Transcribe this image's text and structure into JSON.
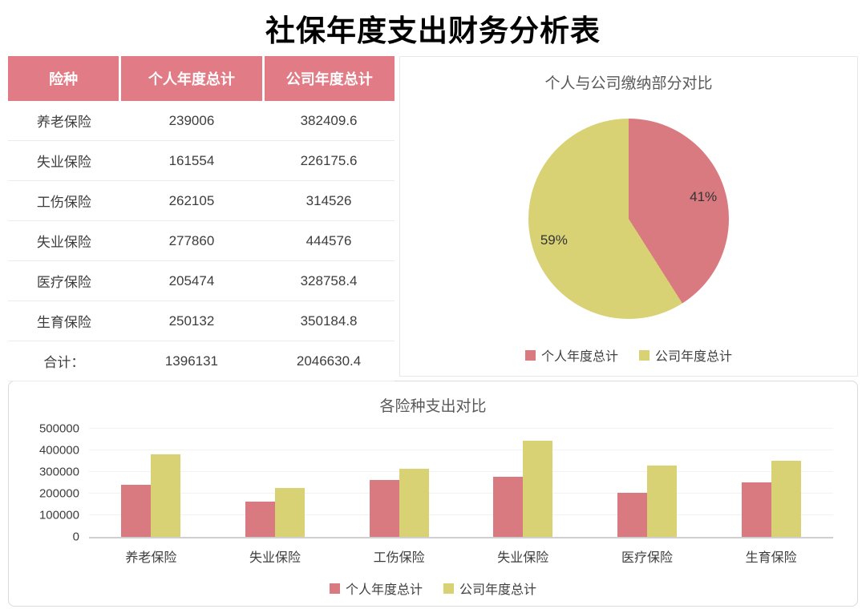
{
  "title": "社保年度支出财务分析表",
  "colors": {
    "personal": "#d97a80",
    "company": "#d8d275",
    "table_header_bg": "#e17b85"
  },
  "table": {
    "headers": [
      "险种",
      "个人年度总计",
      "公司年度总计"
    ],
    "rows": [
      [
        "养老保险",
        "239006",
        "382409.6"
      ],
      [
        "失业保险",
        "161554",
        "226175.6"
      ],
      [
        "工伤保险",
        "262105",
        "314526"
      ],
      [
        "失业保险",
        "277860",
        "444576"
      ],
      [
        "医疗保险",
        "205474",
        "328758.4"
      ],
      [
        "生育保险",
        "250132",
        "350184.8"
      ],
      [
        "合计：",
        "1396131",
        "2046630.4"
      ]
    ]
  },
  "chart_data": [
    {
      "type": "pie",
      "title": "个人与公司缴纳部分对比",
      "slices": [
        {
          "label": "个人年度总计",
          "value": 41,
          "pct_label": "41%",
          "color": "#d97a80"
        },
        {
          "label": "公司年度总计",
          "value": 59,
          "pct_label": "59%",
          "color": "#d8d275"
        }
      ],
      "legend_position": "bottom"
    },
    {
      "type": "bar",
      "title": "各险种支出对比",
      "categories": [
        "养老保险",
        "失业保险",
        "工伤保险",
        "失业保险",
        "医疗保险",
        "生育保险"
      ],
      "series": [
        {
          "name": "个人年度总计",
          "color": "#d97a80",
          "values": [
            239006,
            161554,
            262105,
            277860,
            205474,
            250132
          ]
        },
        {
          "name": "公司年度总计",
          "color": "#d8d275",
          "values": [
            382409.6,
            226175.6,
            314526,
            444576,
            328758.4,
            350184.8
          ]
        }
      ],
      "ylim": [
        0,
        500000
      ],
      "yticks": [
        0,
        100000,
        200000,
        300000,
        400000,
        500000
      ],
      "grid": true,
      "legend_position": "bottom"
    }
  ]
}
